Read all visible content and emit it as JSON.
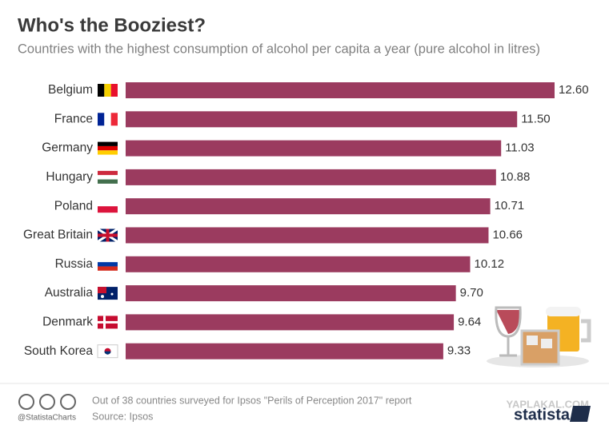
{
  "chart_data": {
    "type": "bar",
    "orientation": "horizontal",
    "title": "Who's the Booziest?",
    "subtitle": "Countries with the highest consumption of alcohol per capita a year (pure alcohol in litres)",
    "categories": [
      "Belgium",
      "France",
      "Germany",
      "Hungary",
      "Poland",
      "Great Britain",
      "Russia",
      "Australia",
      "Denmark",
      "South Korea"
    ],
    "values": [
      12.6,
      11.5,
      11.03,
      10.88,
      10.71,
      10.66,
      10.12,
      9.7,
      9.64,
      9.33
    ],
    "value_labels": [
      "12.60",
      "11.50",
      "11.03",
      "10.88",
      "10.71",
      "10.66",
      "10.12",
      "9.70",
      "9.64",
      "9.33"
    ],
    "color": "#9b3b5f"
  },
  "footer": {
    "note": "Out of 38 countries surveyed for Ipsos \"Perils of Perception 2017\" report",
    "source": "Source: Ipsos",
    "handle": "@StatistaCharts",
    "brand": "statista",
    "watermark": "YAPLAKAL.COM"
  }
}
